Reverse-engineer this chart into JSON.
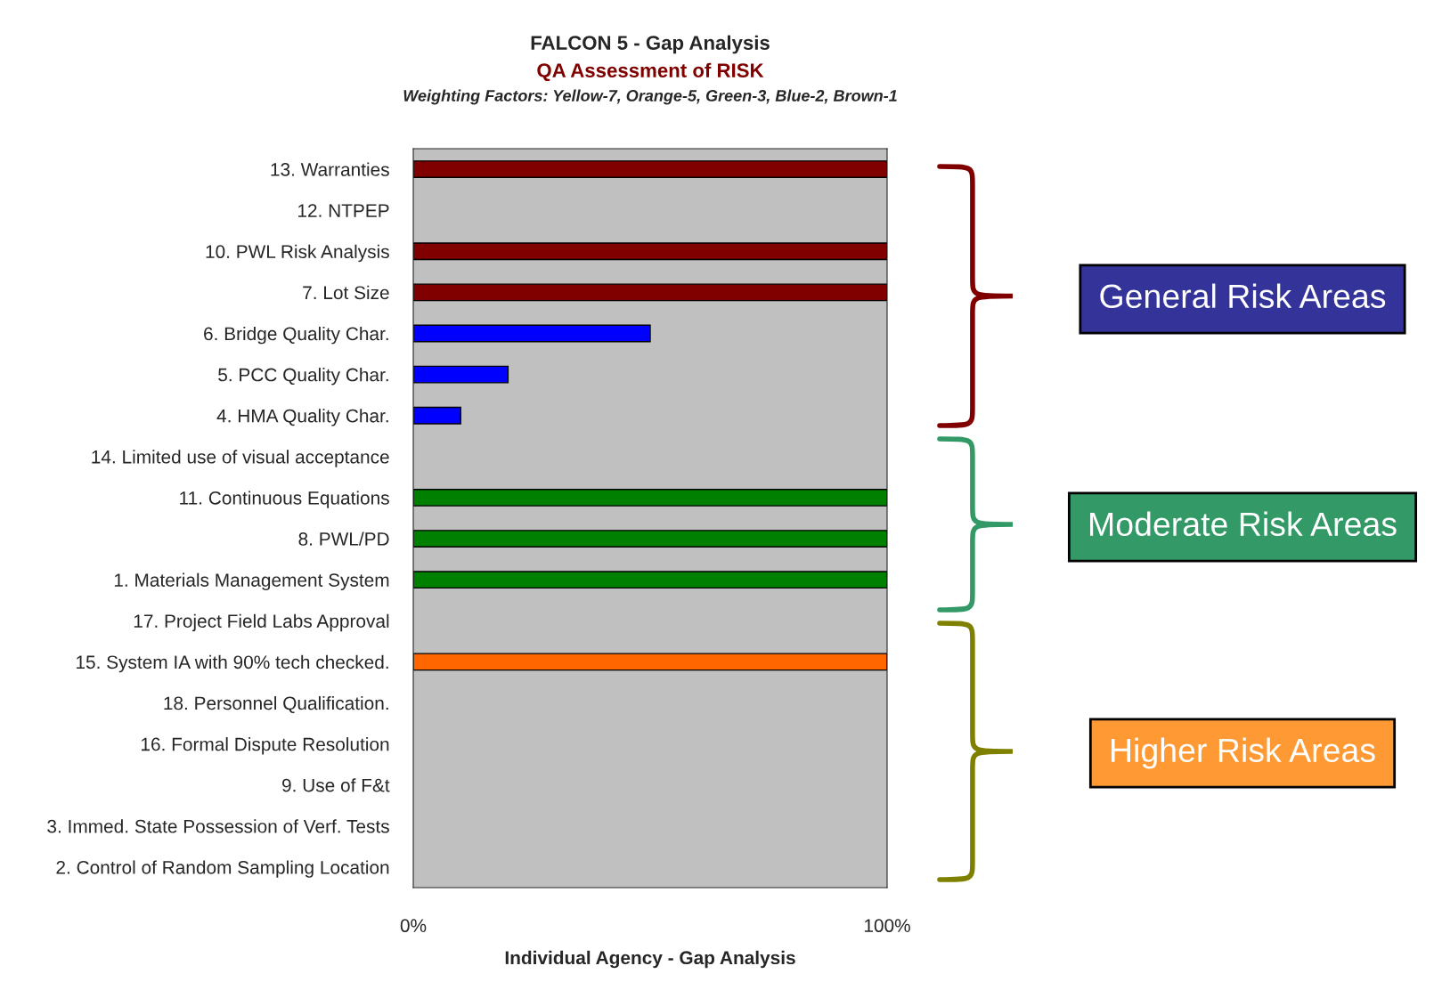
{
  "chart_data": {
    "type": "bar",
    "orientation": "horizontal",
    "title": "FALCON 5 - Gap Analysis",
    "subtitle": "QA Assessment of RISK",
    "xlabel": "Individual Agency - Gap Analysis",
    "categories": [
      "13. Warranties",
      "12. NTPEP",
      "10. PWL Risk Analysis",
      "7. Lot Size",
      "6. Bridge Quality Char.",
      "5. PCC Quality Char.",
      "4. HMA Quality Char.",
      "14. Limited use of visual acceptance",
      "11. Continuous Equations",
      "8. PWL/PD",
      "1. Materials Management System",
      "17. Project Field Labs Approval",
      "15. System IA with 90% tech checked.",
      "18. Personnel Qualification.",
      "16. Formal Dispute Resolution",
      "9. Use of F&t",
      "3. Immed. State Possession of Verf. Tests",
      "2. Control of Random Sampling Location"
    ],
    "values": [
      100,
      0,
      100,
      100,
      50,
      20,
      10,
      0,
      100,
      100,
      100,
      0,
      100,
      0,
      0,
      0,
      0,
      0
    ],
    "colors": [
      "#800000",
      "#800000",
      "#800000",
      "#800000",
      "#0000ff",
      "#0000ff",
      "#0000ff",
      "#008000",
      "#008000",
      "#008000",
      "#008000",
      "#ff6600",
      "#ff6600",
      "#ff6600",
      "#ff6600",
      "#ff6600",
      "#ff6600",
      "#ff6600"
    ],
    "xlim": [
      0,
      100
    ],
    "xticks": [
      {
        "value": 0,
        "label": "0%"
      },
      {
        "value": 100,
        "label": "100%"
      }
    ],
    "grid": false,
    "annotations": [
      "Weighting Factors: Yellow-7, Orange-5, Green-3, Blue-2, Brown-1",
      "General Risk Areas",
      "Moderate Risk Areas",
      "Higher Risk Areas"
    ]
  }
}
